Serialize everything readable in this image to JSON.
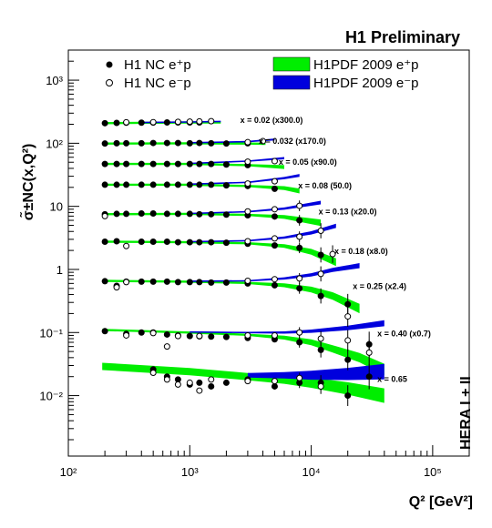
{
  "header": {
    "preliminary": "H1 Preliminary",
    "side_label": "HERA I + II"
  },
  "chart_data": {
    "type": "scatter",
    "title": "H1 Preliminary",
    "xlabel": "Q² [GeV²]",
    "ylabel": "σ̃±NC(x,Q²)",
    "xscale": "log",
    "yscale": "log",
    "xlim": [
      100,
      200000
    ],
    "ylim": [
      0.0011,
      3000
    ],
    "x_ticks": [
      {
        "v": 100,
        "label": "10²"
      },
      {
        "v": 1000,
        "label": "10³"
      },
      {
        "v": 10000,
        "label": "10⁴"
      },
      {
        "v": 100000,
        "label": "10⁵"
      }
    ],
    "y_ticks": [
      {
        "v": 0.01,
        "label": "10⁻²"
      },
      {
        "v": 0.1,
        "label": "10⁻¹"
      },
      {
        "v": 1,
        "label": "1"
      },
      {
        "v": 10,
        "label": "10"
      },
      {
        "v": 100,
        "label": "10²"
      },
      {
        "v": 1000,
        "label": "10³"
      }
    ],
    "legend": {
      "placement": "top",
      "entries": [
        {
          "label": "H1 NC e⁺p",
          "marker": "filled-circle"
        },
        {
          "label": "H1 NC e⁻p",
          "marker": "open-circle"
        },
        {
          "label": "H1PDF 2009 e⁺p",
          "color": "#00ee00"
        },
        {
          "label": "H1PDF 2009 e⁻p",
          "color": "#0000dd"
        }
      ]
    },
    "bins": [
      {
        "label": "x = 0.02   (x300.0)",
        "data_label_anchor": {
          "Q2": 2600,
          "y": 240
        },
        "e_plus": [
          [
            200,
            208
          ],
          [
            250,
            210
          ],
          [
            300,
            212
          ],
          [
            400,
            212
          ],
          [
            500,
            213
          ],
          [
            650,
            214
          ],
          [
            800,
            214
          ],
          [
            1000,
            214
          ],
          [
            1200,
            214
          ]
        ],
        "e_minus": [
          [
            300,
            215
          ],
          [
            500,
            216
          ],
          [
            800,
            218
          ],
          [
            1000,
            220
          ],
          [
            1200,
            222
          ],
          [
            1500,
            224
          ]
        ],
        "curve_e_plus": [
          [
            190,
            208
          ],
          [
            400,
            211
          ],
          [
            1000,
            214
          ],
          [
            1800,
            213
          ]
        ],
        "curve_e_minus": [
          [
            400,
            213
          ],
          [
            1000,
            217
          ],
          [
            1800,
            222
          ]
        ]
      },
      {
        "label": "x = 0.032   (x170.0)",
        "data_label_anchor": {
          "Q2": 3700,
          "y": 112
        },
        "e_plus": [
          [
            200,
            99
          ],
          [
            250,
            100
          ],
          [
            300,
            100
          ],
          [
            400,
            100
          ],
          [
            500,
            101
          ],
          [
            650,
            101
          ],
          [
            800,
            101
          ],
          [
            1000,
            100
          ],
          [
            1200,
            101
          ],
          [
            1500,
            100
          ],
          [
            2000,
            99
          ],
          [
            3000,
            100
          ]
        ],
        "e_minus": [
          [
            3000,
            104
          ],
          [
            4000,
            108
          ]
        ],
        "curve_e_plus": [
          [
            190,
            99
          ],
          [
            1000,
            100
          ],
          [
            3000,
            99
          ],
          [
            4200,
            98
          ]
        ],
        "curve_e_minus": [
          [
            1000,
            102
          ],
          [
            3000,
            106
          ],
          [
            5000,
            115
          ]
        ]
      },
      {
        "label": "x = 0.05   (x90.0)",
        "data_label_anchor": {
          "Q2": 5400,
          "y": 52
        },
        "e_plus": [
          [
            200,
            47
          ],
          [
            250,
            47
          ],
          [
            300,
            47
          ],
          [
            400,
            47
          ],
          [
            500,
            47
          ],
          [
            650,
            47
          ],
          [
            800,
            47
          ],
          [
            1000,
            47
          ],
          [
            1200,
            47
          ],
          [
            1500,
            47
          ],
          [
            2000,
            46
          ],
          [
            3000,
            45
          ]
        ],
        "e_minus": [
          [
            3000,
            51
          ],
          [
            5000,
            52
          ]
        ],
        "curve_e_plus": [
          [
            190,
            47
          ],
          [
            1000,
            47
          ],
          [
            3000,
            45
          ],
          [
            6000,
            42
          ]
        ],
        "curve_e_minus": [
          [
            1000,
            48
          ],
          [
            3000,
            52
          ],
          [
            6000,
            58
          ]
        ]
      },
      {
        "label": "x = 0.08   (50.0)",
        "data_label_anchor": {
          "Q2": 7800,
          "y": 22
        },
        "e_plus": [
          [
            200,
            22
          ],
          [
            250,
            22
          ],
          [
            300,
            22
          ],
          [
            400,
            22
          ],
          [
            500,
            22
          ],
          [
            650,
            22
          ],
          [
            800,
            22
          ],
          [
            1000,
            22
          ],
          [
            1200,
            22
          ],
          [
            1500,
            22
          ],
          [
            2000,
            21.5
          ],
          [
            3000,
            21
          ],
          [
            5000,
            19
          ]
        ],
        "e_minus": [
          [
            3000,
            23
          ],
          [
            5000,
            25
          ]
        ],
        "curve_e_plus": [
          [
            190,
            22
          ],
          [
            1000,
            22
          ],
          [
            3000,
            21
          ],
          [
            6000,
            19.5
          ],
          [
            8000,
            17.5
          ]
        ],
        "curve_e_minus": [
          [
            1000,
            22.5
          ],
          [
            3000,
            24
          ],
          [
            6000,
            28
          ],
          [
            8000,
            31
          ]
        ]
      },
      {
        "label": "x = 0.13   (x20.0)",
        "data_label_anchor": {
          "Q2": 11500,
          "y": 8.5
        },
        "e_plus": [
          [
            200,
            7.5
          ],
          [
            250,
            7.6
          ],
          [
            300,
            7.6
          ],
          [
            400,
            7.7
          ],
          [
            500,
            7.7
          ],
          [
            650,
            7.6
          ],
          [
            800,
            7.6
          ],
          [
            1000,
            7.6
          ],
          [
            1200,
            7.5
          ],
          [
            1500,
            7.5
          ],
          [
            2000,
            7.4
          ],
          [
            3000,
            7.2
          ],
          [
            5000,
            6.9
          ],
          [
            8000,
            6.0
          ]
        ],
        "e_minus": [
          [
            200,
            7.0
          ],
          [
            3000,
            8.3
          ],
          [
            5000,
            9.0
          ],
          [
            8000,
            10.2
          ]
        ],
        "curve_e_plus": [
          [
            190,
            7.5
          ],
          [
            1000,
            7.6
          ],
          [
            3000,
            7.3
          ],
          [
            6000,
            6.8
          ],
          [
            9000,
            6.0
          ],
          [
            12000,
            5.5
          ]
        ],
        "curve_e_minus": [
          [
            1000,
            7.7
          ],
          [
            3000,
            8.2
          ],
          [
            6000,
            9.2
          ],
          [
            12000,
            11.5
          ]
        ]
      },
      {
        "label": "x = 0.18   (x8.0)",
        "data_label_anchor": {
          "Q2": 15500,
          "y": 2.0
        },
        "e_plus": [
          [
            200,
            2.75
          ],
          [
            250,
            2.8
          ],
          [
            400,
            2.75
          ],
          [
            500,
            2.75
          ],
          [
            650,
            2.75
          ],
          [
            800,
            2.7
          ],
          [
            1000,
            2.7
          ],
          [
            1200,
            2.7
          ],
          [
            1500,
            2.7
          ],
          [
            2000,
            2.65
          ],
          [
            3000,
            2.55
          ],
          [
            5000,
            2.4
          ],
          [
            8000,
            2.2
          ],
          [
            12000,
            1.7
          ]
        ],
        "e_minus": [
          [
            300,
            2.35
          ],
          [
            3000,
            2.8
          ],
          [
            5000,
            3.1
          ],
          [
            8000,
            3.3
          ],
          [
            12000,
            4.1
          ],
          [
            15000,
            1.75
          ]
        ],
        "curve_e_plus": [
          [
            190,
            2.75
          ],
          [
            1000,
            2.7
          ],
          [
            3000,
            2.6
          ],
          [
            6000,
            2.35
          ],
          [
            10000,
            1.9
          ],
          [
            16000,
            1.3
          ]
        ],
        "curve_e_minus": [
          [
            1000,
            2.75
          ],
          [
            3000,
            2.85
          ],
          [
            6000,
            3.2
          ],
          [
            10000,
            3.8
          ],
          [
            16000,
            4.9
          ]
        ]
      },
      {
        "label": "x = 0.25   (x2.4)",
        "data_label_anchor": {
          "Q2": 22000,
          "y": 0.56
        },
        "e_plus": [
          [
            200,
            0.65
          ],
          [
            250,
            0.55
          ],
          [
            300,
            0.64
          ],
          [
            400,
            0.64
          ],
          [
            500,
            0.64
          ],
          [
            650,
            0.64
          ],
          [
            800,
            0.63
          ],
          [
            1000,
            0.63
          ],
          [
            1200,
            0.63
          ],
          [
            1500,
            0.62
          ],
          [
            2000,
            0.62
          ],
          [
            3000,
            0.6
          ],
          [
            5000,
            0.56
          ],
          [
            8000,
            0.5
          ],
          [
            12000,
            0.38
          ],
          [
            20000,
            0.28
          ]
        ],
        "e_minus": [
          [
            250,
            0.52
          ],
          [
            300,
            0.63
          ],
          [
            3000,
            0.66
          ],
          [
            5000,
            0.7
          ],
          [
            8000,
            0.72
          ],
          [
            12000,
            0.85
          ],
          [
            20000,
            0.18
          ]
        ],
        "curve_e_plus": [
          [
            190,
            0.66
          ],
          [
            1000,
            0.64
          ],
          [
            3000,
            0.61
          ],
          [
            6000,
            0.56
          ],
          [
            10000,
            0.48
          ],
          [
            15000,
            0.38
          ],
          [
            25000,
            0.24
          ]
        ],
        "curve_e_minus": [
          [
            1000,
            0.65
          ],
          [
            3000,
            0.66
          ],
          [
            6000,
            0.72
          ],
          [
            10000,
            0.82
          ],
          [
            15000,
            0.98
          ],
          [
            25000,
            1.15
          ]
        ]
      },
      {
        "label": "x = 0.40   (x0.7)",
        "data_label_anchor": {
          "Q2": 35000,
          "y": 0.1
        },
        "e_plus": [
          [
            200,
            0.105
          ],
          [
            300,
            0.095
          ],
          [
            400,
            0.1
          ],
          [
            500,
            0.1
          ],
          [
            650,
            0.093
          ],
          [
            800,
            0.09
          ],
          [
            1000,
            0.088
          ],
          [
            1200,
            0.087
          ],
          [
            1500,
            0.086
          ],
          [
            2000,
            0.085
          ],
          [
            3000,
            0.082
          ],
          [
            5000,
            0.078
          ],
          [
            8000,
            0.07
          ],
          [
            12000,
            0.053
          ],
          [
            20000,
            0.037
          ],
          [
            30000,
            0.065
          ]
        ],
        "e_minus": [
          [
            300,
            0.09
          ],
          [
            500,
            0.098
          ],
          [
            650,
            0.06
          ],
          [
            800,
            0.088
          ],
          [
            1200,
            0.088
          ],
          [
            3000,
            0.09
          ],
          [
            5000,
            0.09
          ],
          [
            8000,
            0.1
          ],
          [
            12000,
            0.08
          ],
          [
            20000,
            0.075
          ],
          [
            30000,
            0.048
          ]
        ],
        "curve_e_plus": [
          [
            190,
            0.11
          ],
          [
            1000,
            0.1
          ],
          [
            3000,
            0.092
          ],
          [
            6000,
            0.083
          ],
          [
            10000,
            0.07
          ],
          [
            15000,
            0.055
          ],
          [
            25000,
            0.04
          ],
          [
            40000,
            0.026
          ]
        ],
        "curve_e_minus": [
          [
            1000,
            0.102
          ],
          [
            3000,
            0.1
          ],
          [
            6000,
            0.1
          ],
          [
            10000,
            0.105
          ],
          [
            20000,
            0.118
          ],
          [
            40000,
            0.14
          ]
        ]
      },
      {
        "label": "x = 0.65",
        "data_label_anchor": {
          "Q2": 35000,
          "y": 0.019
        },
        "e_plus": [
          [
            500,
            0.026
          ],
          [
            650,
            0.02
          ],
          [
            800,
            0.018
          ],
          [
            1000,
            0.015
          ],
          [
            1200,
            0.016
          ],
          [
            1500,
            0.014
          ],
          [
            2000,
            0.016
          ],
          [
            3000,
            0.018
          ],
          [
            5000,
            0.014
          ],
          [
            8000,
            0.016
          ],
          [
            12000,
            0.016
          ],
          [
            20000,
            0.01
          ],
          [
            30000,
            0.02
          ]
        ],
        "e_minus": [
          [
            500,
            0.023
          ],
          [
            650,
            0.018
          ],
          [
            800,
            0.015
          ],
          [
            1000,
            0.016
          ],
          [
            1200,
            0.012
          ],
          [
            1500,
            0.018
          ],
          [
            3000,
            0.017
          ],
          [
            5000,
            0.017
          ],
          [
            8000,
            0.019
          ],
          [
            12000,
            0.014
          ]
        ],
        "curve_e_plus": [
          [
            190,
            0.029
          ],
          [
            1000,
            0.024
          ],
          [
            3000,
            0.02
          ],
          [
            6000,
            0.018
          ],
          [
            10000,
            0.016
          ],
          [
            20000,
            0.013
          ],
          [
            40000,
            0.01
          ]
        ],
        "curve_e_minus": [
          [
            3000,
            0.021
          ],
          [
            6000,
            0.021
          ],
          [
            10000,
            0.021
          ],
          [
            20000,
            0.022
          ],
          [
            40000,
            0.024
          ]
        ]
      }
    ]
  }
}
